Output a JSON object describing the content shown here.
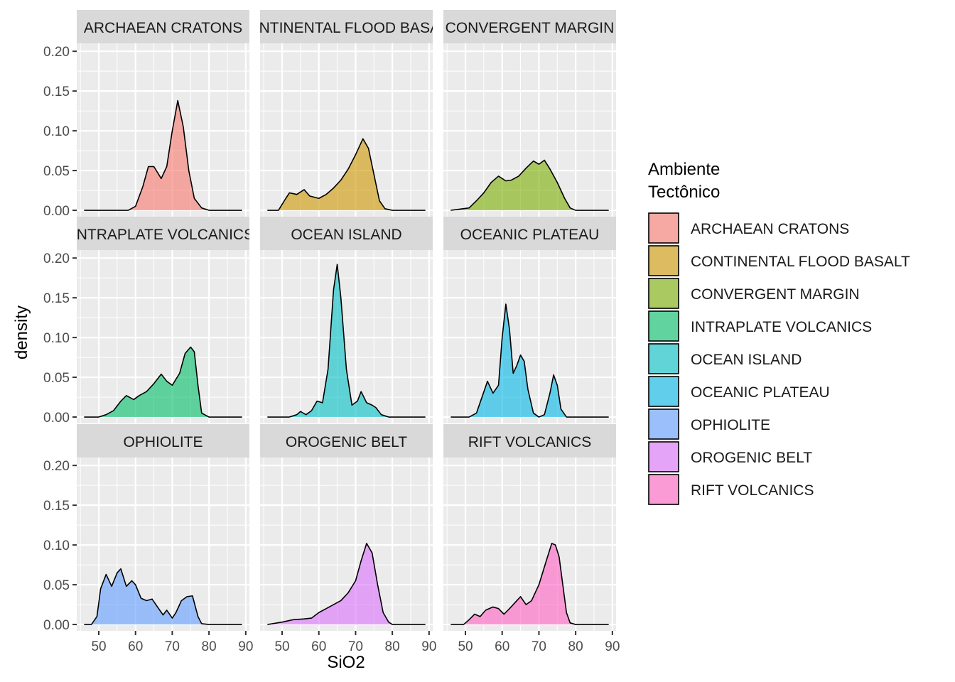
{
  "chart_data": {
    "type": "area",
    "subtype": "density facet grid",
    "title": "",
    "xlabel": "SiO2",
    "ylabel": "density",
    "xlim": [
      44,
      91
    ],
    "ylim": [
      -0.008,
      0.21
    ],
    "x_ticks": [
      50,
      60,
      70,
      80,
      90
    ],
    "x_tick_labels": [
      "50",
      "60",
      "70",
      "80",
      "90"
    ],
    "y_ticks": [
      0,
      0.05,
      0.1,
      0.15,
      0.2
    ],
    "y_tick_labels": [
      "0.00",
      "0.05",
      "0.10",
      "0.15",
      "0.20"
    ],
    "grid": true,
    "legend": {
      "title_lines": [
        "Ambiente",
        "Tectônico"
      ],
      "position": "right"
    },
    "panel_titles": [
      "ARCHAEAN CRATONS",
      "CONTINENTAL FLOOD BASALT",
      "CONVERGENT MARGIN",
      "INTRAPLATE VOLCANICS",
      "OCEAN ISLAND",
      "OCEANIC PLATEAU",
      "OPHIOLITE",
      "OROGENIC BELT",
      "RIFT VOLCANICS"
    ],
    "series": [
      {
        "name": "ARCHAEAN CRATONS",
        "color": "#F8766D",
        "points": [
          [
            46,
            0
          ],
          [
            58,
            0
          ],
          [
            60,
            0.005
          ],
          [
            62,
            0.03
          ],
          [
            63.5,
            0.055
          ],
          [
            65,
            0.055
          ],
          [
            67,
            0.04
          ],
          [
            68.5,
            0.055
          ],
          [
            70,
            0.1
          ],
          [
            71.5,
            0.138
          ],
          [
            73,
            0.105
          ],
          [
            74.5,
            0.05
          ],
          [
            76,
            0.015
          ],
          [
            78,
            0.003
          ],
          [
            80,
            0
          ],
          [
            89,
            0
          ]
        ]
      },
      {
        "name": "CONTINENTAL FLOOD BASALT",
        "color": "#CD9600",
        "points": [
          [
            46,
            0
          ],
          [
            49,
            0
          ],
          [
            51,
            0.015
          ],
          [
            52,
            0.022
          ],
          [
            54,
            0.02
          ],
          [
            56,
            0.026
          ],
          [
            57.5,
            0.018
          ],
          [
            60,
            0.015
          ],
          [
            62,
            0.02
          ],
          [
            64,
            0.028
          ],
          [
            66,
            0.038
          ],
          [
            68,
            0.052
          ],
          [
            70,
            0.07
          ],
          [
            72,
            0.09
          ],
          [
            73.5,
            0.078
          ],
          [
            75,
            0.045
          ],
          [
            76.5,
            0.012
          ],
          [
            78,
            0.002
          ],
          [
            80,
            0
          ],
          [
            89,
            0
          ]
        ]
      },
      {
        "name": "CONVERGENT MARGIN",
        "color": "#7CAE00",
        "points": [
          [
            46,
            0
          ],
          [
            51,
            0.003
          ],
          [
            53,
            0.012
          ],
          [
            55,
            0.022
          ],
          [
            57,
            0.035
          ],
          [
            59,
            0.043
          ],
          [
            61,
            0.037
          ],
          [
            62.5,
            0.038
          ],
          [
            64.5,
            0.043
          ],
          [
            66.5,
            0.053
          ],
          [
            68.5,
            0.062
          ],
          [
            70,
            0.058
          ],
          [
            71.5,
            0.063
          ],
          [
            73,
            0.052
          ],
          [
            75,
            0.035
          ],
          [
            77,
            0.015
          ],
          [
            78.5,
            0.003
          ],
          [
            80,
            0
          ],
          [
            89,
            0
          ]
        ]
      },
      {
        "name": "INTRAPLATE VOLCANICS",
        "color": "#00BE67",
        "points": [
          [
            46,
            0
          ],
          [
            50,
            0
          ],
          [
            52,
            0.003
          ],
          [
            54,
            0.008
          ],
          [
            56,
            0.02
          ],
          [
            57.5,
            0.027
          ],
          [
            59.5,
            0.022
          ],
          [
            61,
            0.027
          ],
          [
            63,
            0.032
          ],
          [
            65,
            0.042
          ],
          [
            67,
            0.054
          ],
          [
            68.5,
            0.045
          ],
          [
            70,
            0.04
          ],
          [
            72,
            0.055
          ],
          [
            73.5,
            0.08
          ],
          [
            75,
            0.088
          ],
          [
            76,
            0.082
          ],
          [
            77,
            0.04
          ],
          [
            78,
            0.005
          ],
          [
            80,
            0
          ],
          [
            89,
            0
          ]
        ]
      },
      {
        "name": "OCEAN ISLAND",
        "color": "#00BFC4",
        "points": [
          [
            46,
            0
          ],
          [
            52,
            0
          ],
          [
            54,
            0.003
          ],
          [
            55,
            0.007
          ],
          [
            56.5,
            0.003
          ],
          [
            58,
            0.008
          ],
          [
            59.5,
            0.02
          ],
          [
            61,
            0.018
          ],
          [
            62.5,
            0.06
          ],
          [
            64,
            0.16
          ],
          [
            65,
            0.192
          ],
          [
            66,
            0.15
          ],
          [
            67.5,
            0.06
          ],
          [
            69,
            0.015
          ],
          [
            70.5,
            0.02
          ],
          [
            71.5,
            0.032
          ],
          [
            73,
            0.018
          ],
          [
            74.5,
            0.015
          ],
          [
            75.5,
            0.012
          ],
          [
            77,
            0.003
          ],
          [
            79,
            0
          ],
          [
            89,
            0
          ]
        ]
      },
      {
        "name": "OCEANIC PLATEAU",
        "color": "#00B8E7",
        "points": [
          [
            46,
            0
          ],
          [
            51,
            0
          ],
          [
            53,
            0.005
          ],
          [
            54.5,
            0.025
          ],
          [
            56,
            0.045
          ],
          [
            57.5,
            0.03
          ],
          [
            59,
            0.04
          ],
          [
            60,
            0.1
          ],
          [
            61,
            0.142
          ],
          [
            62,
            0.11
          ],
          [
            63,
            0.055
          ],
          [
            64,
            0.065
          ],
          [
            65,
            0.078
          ],
          [
            66,
            0.07
          ],
          [
            67,
            0.035
          ],
          [
            68.5,
            0.005
          ],
          [
            70,
            0
          ],
          [
            71.5,
            0.003
          ],
          [
            73,
            0.03
          ],
          [
            74,
            0.053
          ],
          [
            75,
            0.04
          ],
          [
            76,
            0.01
          ],
          [
            77.5,
            0
          ],
          [
            89,
            0
          ]
        ]
      },
      {
        "name": "OPHIOLITE",
        "color": "#619CFF",
        "points": [
          [
            46,
            0
          ],
          [
            48,
            0
          ],
          [
            49.5,
            0.01
          ],
          [
            50.5,
            0.045
          ],
          [
            52,
            0.063
          ],
          [
            53.5,
            0.048
          ],
          [
            55,
            0.065
          ],
          [
            56,
            0.07
          ],
          [
            57.5,
            0.048
          ],
          [
            59,
            0.055
          ],
          [
            60,
            0.05
          ],
          [
            61.5,
            0.033
          ],
          [
            63,
            0.03
          ],
          [
            64.5,
            0.032
          ],
          [
            66,
            0.022
          ],
          [
            67.5,
            0.012
          ],
          [
            68.5,
            0.018
          ],
          [
            70,
            0.008
          ],
          [
            71,
            0.015
          ],
          [
            72.5,
            0.03
          ],
          [
            74,
            0.035
          ],
          [
            75.5,
            0.036
          ],
          [
            77,
            0.01
          ],
          [
            78,
            0.001
          ],
          [
            80,
            0
          ],
          [
            89,
            0
          ]
        ]
      },
      {
        "name": "OROGENIC BELT",
        "color": "#DB72FB",
        "points": [
          [
            46,
            0
          ],
          [
            50,
            0.003
          ],
          [
            53,
            0.006
          ],
          [
            56,
            0.007
          ],
          [
            58,
            0.008
          ],
          [
            60,
            0.015
          ],
          [
            62,
            0.02
          ],
          [
            64,
            0.025
          ],
          [
            66,
            0.03
          ],
          [
            68,
            0.04
          ],
          [
            70,
            0.055
          ],
          [
            71.5,
            0.08
          ],
          [
            73,
            0.102
          ],
          [
            74.5,
            0.09
          ],
          [
            76,
            0.05
          ],
          [
            77.5,
            0.015
          ],
          [
            79,
            0.003
          ],
          [
            80,
            0
          ],
          [
            89,
            0
          ]
        ]
      },
      {
        "name": "RIFT VOLCANICS",
        "color": "#FF61C3",
        "points": [
          [
            46,
            0
          ],
          [
            49.5,
            0
          ],
          [
            51,
            0.006
          ],
          [
            52.5,
            0.013
          ],
          [
            54,
            0.01
          ],
          [
            55.5,
            0.018
          ],
          [
            57.5,
            0.022
          ],
          [
            59,
            0.02
          ],
          [
            60.5,
            0.013
          ],
          [
            62,
            0.02
          ],
          [
            64,
            0.03
          ],
          [
            65,
            0.035
          ],
          [
            66.5,
            0.025
          ],
          [
            68,
            0.03
          ],
          [
            70,
            0.05
          ],
          [
            72,
            0.08
          ],
          [
            73.5,
            0.102
          ],
          [
            74.5,
            0.1
          ],
          [
            75.5,
            0.085
          ],
          [
            76.5,
            0.05
          ],
          [
            77.5,
            0.015
          ],
          [
            78.5,
            0.002
          ],
          [
            80,
            0
          ],
          [
            89,
            0
          ]
        ]
      }
    ]
  }
}
